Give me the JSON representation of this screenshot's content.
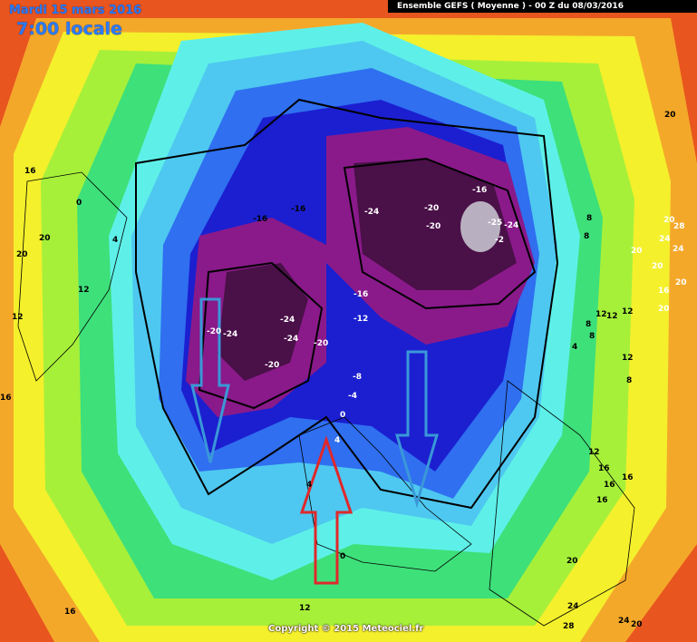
{
  "header": {
    "date": "Mardi 15 mars 2016",
    "time": "7:00 locale",
    "model": "Ensemble GEFS  ( Moyenne )  -  00 Z du 08/03/2016"
  },
  "copyright": "Copyright © 2015 Meteociel.fr",
  "contour_labels": [
    "-16",
    "-16",
    "-24",
    "-20",
    "-20",
    "-16",
    "-25",
    "-24",
    "-2",
    "-24",
    "-24",
    "-24",
    "-20",
    "-20",
    "-20",
    "-16",
    "-12",
    "-8",
    "-4",
    "0",
    "4",
    "4",
    "0",
    "16",
    "0",
    "20",
    "4",
    "12",
    "20",
    "16",
    "12",
    "16",
    "8",
    "8",
    "12",
    "20",
    "24",
    "28",
    "20",
    "24",
    "20",
    "20",
    "16",
    "20",
    "12",
    "12",
    "8",
    "8",
    "4",
    "12",
    "8",
    "20",
    "16",
    "16",
    "16",
    "12",
    "20",
    "24",
    "28",
    "24",
    "20",
    "16",
    "12"
  ],
  "colors": {
    "very_cold": "#4a1048",
    "cold_purple": "#8a1a8a",
    "deep_blue": "#1b1fd0",
    "blue": "#2f6ff0",
    "light_blue": "#4ec8f0",
    "cyan": "#5ef0e8",
    "green": "#3ee07a",
    "lime": "#a6f03a",
    "yellow": "#f4f02c",
    "orange": "#f4a82a",
    "red_orange": "#e8551e",
    "arrow_blue": "#3a98d8",
    "arrow_red": "#e0282a"
  },
  "arrows": [
    {
      "name": "cold-air-arrow-west",
      "color": "arrow_blue",
      "direction": "down"
    },
    {
      "name": "cold-air-arrow-east",
      "color": "arrow_blue",
      "direction": "down"
    },
    {
      "name": "warm-air-arrow",
      "color": "arrow_red",
      "direction": "up"
    }
  ]
}
